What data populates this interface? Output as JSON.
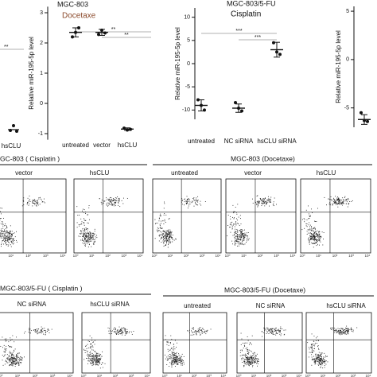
{
  "left_panel": {
    "category": "hsCLU",
    "annotation": "**"
  },
  "chart_data": [
    {
      "type": "dotplot",
      "title": "MGC-803",
      "subtitle": "Docetaxe",
      "subtitle_color": "#8b4a2b",
      "y_label": "Relative miR-195-5p level",
      "categories": [
        "untreated",
        "vector",
        "hsCLU"
      ],
      "values": [
        2.35,
        2.35,
        -0.85
      ],
      "errors": [
        0.15,
        0.1,
        0.04
      ],
      "points": [
        [
          2.2,
          2.35,
          2.5
        ],
        [
          2.28,
          2.42,
          2.33
        ],
        [
          -0.82,
          -0.88,
          -0.86
        ]
      ],
      "ylim": [
        -1.2,
        3.2
      ],
      "yticks": [
        -1,
        0,
        1,
        2,
        3
      ],
      "annotations": [
        "**",
        "**"
      ]
    },
    {
      "type": "dotplot",
      "title": "MGC-803/5-FU",
      "subtitle": "Cisplatin",
      "subtitle_color": "#111111",
      "y_label": "Relative miR-195-5p level",
      "categories": [
        "untreated",
        "NC siRNA",
        "hsCLU siRNA"
      ],
      "values": [
        -9,
        -9.6,
        3
      ],
      "errors": [
        1.2,
        0.9,
        1.6
      ],
      "points": [
        [
          -7.8,
          -9,
          -10
        ],
        [
          -8.4,
          -9.6,
          -10.2
        ],
        [
          4.5,
          2.5,
          2
        ]
      ],
      "ylim": [
        -12,
        12
      ],
      "yticks": [
        -10,
        -5,
        0,
        5,
        10
      ],
      "annotations": [
        "***",
        "***"
      ]
    },
    {
      "type": "dotplot",
      "y_label": "Relative miR-195-5p level",
      "categories": [
        null
      ],
      "values": [
        -6.2
      ],
      "errors": [
        0.5
      ],
      "points": [
        [
          -5.5,
          -6.3,
          -6.4
        ]
      ],
      "ylim": [
        -7,
        5.5
      ],
      "yticks": [
        -5,
        0,
        5
      ]
    }
  ],
  "flow_axis_ticks": [
    "10⁰",
    "10¹",
    "10²",
    "10³",
    "10⁴"
  ],
  "flow_panels": [
    {
      "title": "GC-803 ( Cisplatin )",
      "labels": [
        "vector",
        "hsCLU"
      ]
    },
    {
      "title": "MGC-803 (Docetaxe)",
      "labels": [
        "untreated",
        "vector",
        "hsCLU"
      ]
    },
    {
      "title": "MGC-803/5-FU ( Cisplatin )",
      "labels": [
        "NC siRNA",
        "hsCLU siRNA"
      ]
    },
    {
      "title": "MGC-803/5-FU (Docetaxe)",
      "labels": [
        "untreated",
        "NC siRNA",
        "hsCLU siRNA"
      ]
    }
  ]
}
